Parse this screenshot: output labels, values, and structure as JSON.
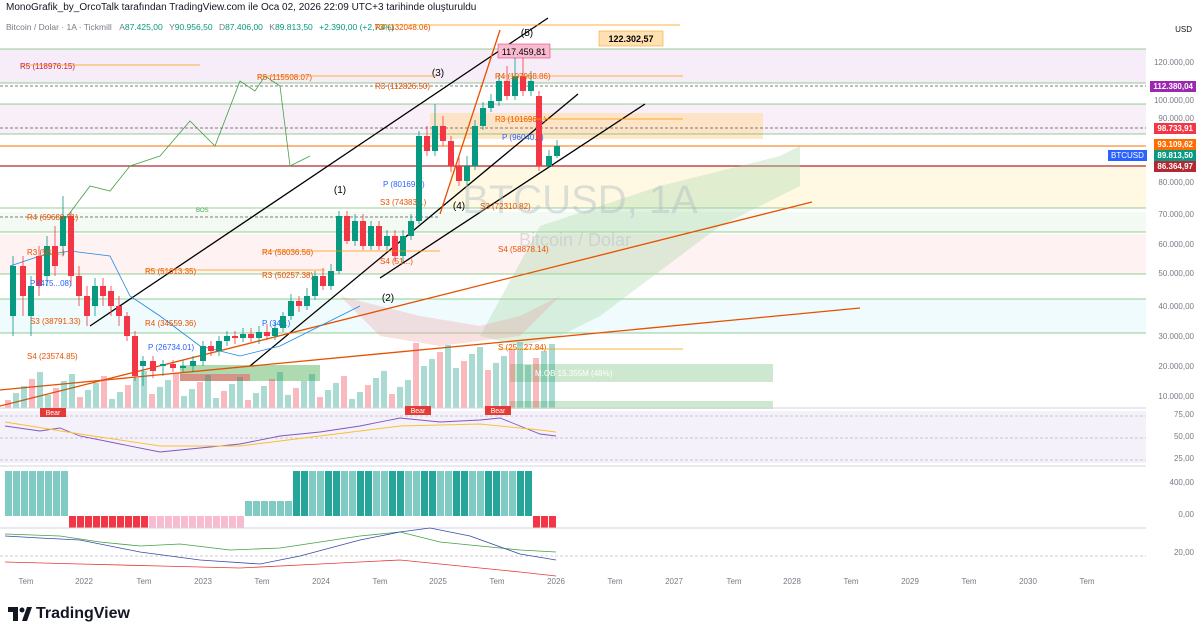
{
  "header": {
    "attribution": "MonoGrafik_by_OrcoTalk tarafından TradingView.com ile Oca 02, 2026 22:09 UTC+3 tarihinde oluşturuldu"
  },
  "legend": {
    "symbol": "Bitcoin / Dolar · 1A · Tickmill",
    "open_label": "A",
    "open": "87.425,00",
    "high_label": "Y",
    "high": "90.956,50",
    "low_label": "D",
    "low": "87.406,00",
    "close_label": "K",
    "close": "89.813,50",
    "change": "+2.390,00 (+2,73%)"
  },
  "currency": "USD",
  "yaxis": {
    "ticks": [
      "120.000,00",
      "100.000,00",
      "90.000,00",
      "80.000,00",
      "70.000,00",
      "60.000,00",
      "50.000,00",
      "40.000,00",
      "30.000,00",
      "20.000,00",
      "10.000,00"
    ],
    "rsi_ticks": [
      "75,00",
      "50,00",
      "25,00"
    ],
    "osc_ticks": [
      "400,00",
      "0,00",
      "20,00"
    ],
    "price_tags": [
      {
        "label": "112.380,04",
        "color": "#9c27b0"
      },
      {
        "label": "98.733,91",
        "color": "#f23645"
      },
      {
        "label": "93.109,62",
        "color": "#ff6d00"
      },
      {
        "label": "89.813,50",
        "color": "#089981"
      },
      {
        "label": "86.364,97",
        "color": "#b22833"
      }
    ],
    "symbol_tag": "BTCUSD"
  },
  "xaxis": {
    "ticks": [
      "Tem",
      "2022",
      "Tem",
      "2023",
      "Tem",
      "2024",
      "Tem",
      "2025",
      "Tem",
      "2026",
      "Tem",
      "2027",
      "Tem",
      "2028",
      "Tem",
      "2029",
      "Tem",
      "2030",
      "Tem"
    ]
  },
  "annotations": {
    "wave1": "(1)",
    "wave2": "(2)",
    "wave3": "(3)",
    "wave4": "(4)",
    "wave5": "(5)",
    "peak_label": "117.459,81",
    "target_label": "122.302,57",
    "watermark_symbol": "BTCUSD, 1A",
    "watermark_name": "Bitcoin / Dolar",
    "bos": "BOS",
    "bear1": "Bear",
    "bear2": "Bear",
    "bear3": "Bear",
    "volume_label": "M.OB 15.355M (48%)",
    "pivots": {
      "r4_top": "R4 (132048.06)",
      "r5_a": "R5 (118976.15)",
      "r5_b": "R5 (115508.07)",
      "r3_a": "R3 (112826.50)",
      "r4_b": "R4 (107968.86)",
      "r3_b": "R3 (101696...)",
      "p_a": "P (96040...)",
      "p_b": "P (80169...)",
      "s3_a": "S3 (74383...)",
      "s3_b": "S3 (72310.82)",
      "r4_c": "R4 (69680.71)",
      "r3_c": "R3 (581...)",
      "r4_d": "R4 (58036.56)",
      "s4_a": "S4 (58878.14)",
      "r5_c": "R5 (51613.35)",
      "r3_d": "R3 (50257.38)",
      "s4_b": "S4 (51...)",
      "p_c": "P (475...08)",
      "r4_e": "R4 (34559.36)",
      "p_d": "P (34...)",
      "s3_c": "S3 (38791.33)",
      "p_e": "P (26734.01)",
      "s4_c": "S4 (23574.85)",
      "s_d": "S (25...27.84)"
    }
  }
}
